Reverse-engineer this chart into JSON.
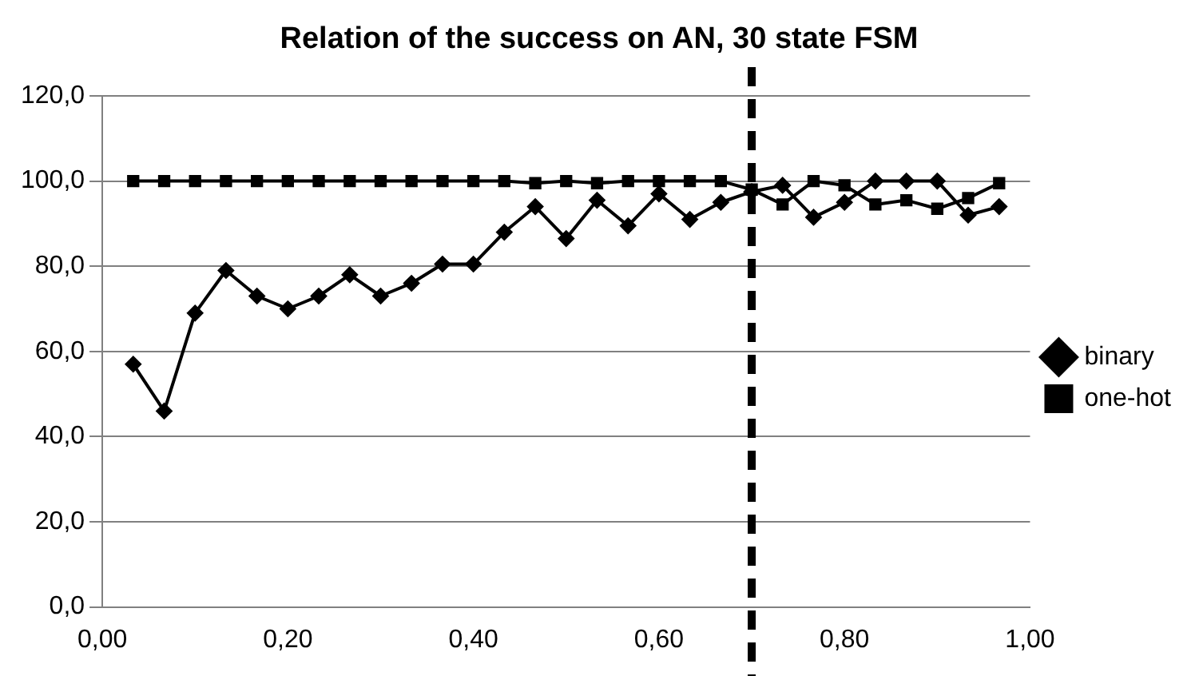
{
  "chart_data": {
    "type": "line",
    "title": "Relation of the success on AN, 30 state FSM",
    "x": [
      0.0333,
      0.0667,
      0.1,
      0.1333,
      0.1667,
      0.2,
      0.2333,
      0.2667,
      0.3,
      0.3333,
      0.3667,
      0.4,
      0.4333,
      0.4667,
      0.5,
      0.5333,
      0.5667,
      0.6,
      0.6333,
      0.6667,
      0.7,
      0.7333,
      0.7667,
      0.8,
      0.8333,
      0.8667,
      0.9,
      0.9333,
      0.9667
    ],
    "series": [
      {
        "name": "binary",
        "color": "#000000",
        "marker": "diamond",
        "values": [
          57,
          46,
          69,
          79,
          73,
          70,
          73,
          78,
          73,
          76,
          80.5,
          80.5,
          88,
          94,
          86.5,
          95.5,
          89.5,
          97,
          91,
          95,
          97.5,
          99,
          91.5,
          95,
          100,
          100,
          100,
          92,
          94
        ]
      },
      {
        "name": "one-hot",
        "color": "#000000",
        "marker": "square",
        "values": [
          100,
          100,
          100,
          100,
          100,
          100,
          100,
          100,
          100,
          100,
          100,
          100,
          100,
          99.5,
          100,
          99.5,
          100,
          100,
          100,
          100,
          98,
          94.5,
          100,
          99,
          94.5,
          95.5,
          93.5,
          96,
          99.5
        ]
      }
    ],
    "xlim": [
      0,
      1
    ],
    "xticks": [
      {
        "value": 0,
        "label": "0,00"
      },
      {
        "value": 0.2,
        "label": "0,20"
      },
      {
        "value": 0.4,
        "label": "0,40"
      },
      {
        "value": 0.6,
        "label": "0,60"
      },
      {
        "value": 0.8,
        "label": "0,80"
      },
      {
        "value": 1,
        "label": "1,00"
      }
    ],
    "ylim": [
      0,
      120
    ],
    "yticks": [
      {
        "value": 0,
        "label": "0,0"
      },
      {
        "value": 20,
        "label": "20,0"
      },
      {
        "value": 40,
        "label": "40,0"
      },
      {
        "value": 60,
        "label": "60,0"
      },
      {
        "value": 80,
        "label": "80,0"
      },
      {
        "value": 100,
        "label": "100,0"
      },
      {
        "value": 120,
        "label": "120,0"
      }
    ],
    "grid": "y",
    "legend": "right",
    "line_style": "solid",
    "ref_lines": [
      {
        "axis": "x",
        "value": 0.7,
        "color": "#000000",
        "line_style": "dashed"
      }
    ]
  }
}
